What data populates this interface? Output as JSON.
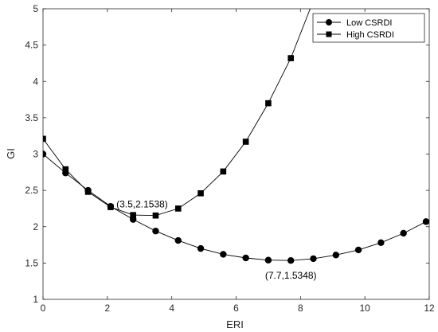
{
  "chart_data": {
    "type": "line",
    "xlabel": "ERI",
    "ylabel": "GI",
    "xlim": [
      0,
      12
    ],
    "ylim": [
      1,
      5
    ],
    "xticks": [
      0,
      2,
      4,
      6,
      8,
      10,
      12
    ],
    "yticks": [
      1,
      1.5,
      2,
      2.5,
      3,
      3.5,
      4,
      4.5,
      5
    ],
    "xtick_labels": [
      "0",
      "2",
      "4",
      "6",
      "8",
      "10",
      "12"
    ],
    "ytick_labels": [
      "1",
      "1.5",
      "2",
      "2.5",
      "3",
      "3.5",
      "4",
      "4.5",
      "5"
    ],
    "grid": false,
    "legend_position": "top-right",
    "series": [
      {
        "name": "Low CSRDI",
        "marker": "circle",
        "color": "#000000",
        "points": [
          [
            0,
            3.0
          ],
          [
            0.7,
            2.74
          ],
          [
            1.4,
            2.5
          ],
          [
            2.1,
            2.28
          ],
          [
            2.8,
            2.1
          ],
          [
            3.5,
            1.94
          ],
          [
            4.2,
            1.81
          ],
          [
            4.9,
            1.7
          ],
          [
            5.6,
            1.62
          ],
          [
            6.3,
            1.57
          ],
          [
            7.0,
            1.54
          ],
          [
            7.7,
            1.5348
          ],
          [
            8.4,
            1.56
          ],
          [
            9.1,
            1.61
          ],
          [
            9.8,
            1.68
          ],
          [
            10.5,
            1.78
          ],
          [
            11.2,
            1.91
          ],
          [
            11.9,
            2.07
          ]
        ],
        "line_extends_to_x": 12,
        "line_end_y": 2.09
      },
      {
        "name": "High CSRDI",
        "marker": "square",
        "color": "#000000",
        "points": [
          [
            0,
            3.21
          ],
          [
            0.7,
            2.79
          ],
          [
            1.4,
            2.48
          ],
          [
            2.1,
            2.27
          ],
          [
            2.8,
            2.16
          ],
          [
            3.5,
            2.1538
          ],
          [
            4.2,
            2.25
          ],
          [
            4.9,
            2.46
          ],
          [
            5.6,
            2.76
          ],
          [
            6.3,
            3.17
          ],
          [
            7.0,
            3.7
          ],
          [
            7.7,
            4.32
          ]
        ],
        "line_extends_to_y": 5,
        "line_end_x": 8.3
      }
    ],
    "annotations": [
      {
        "text": "(3.5,2.1538)",
        "x": 3.5,
        "y": 2.1538,
        "anchor": "above-left"
      },
      {
        "text": "(7.7,1.5348)",
        "x": 7.7,
        "y": 1.5348,
        "anchor": "below"
      }
    ]
  }
}
